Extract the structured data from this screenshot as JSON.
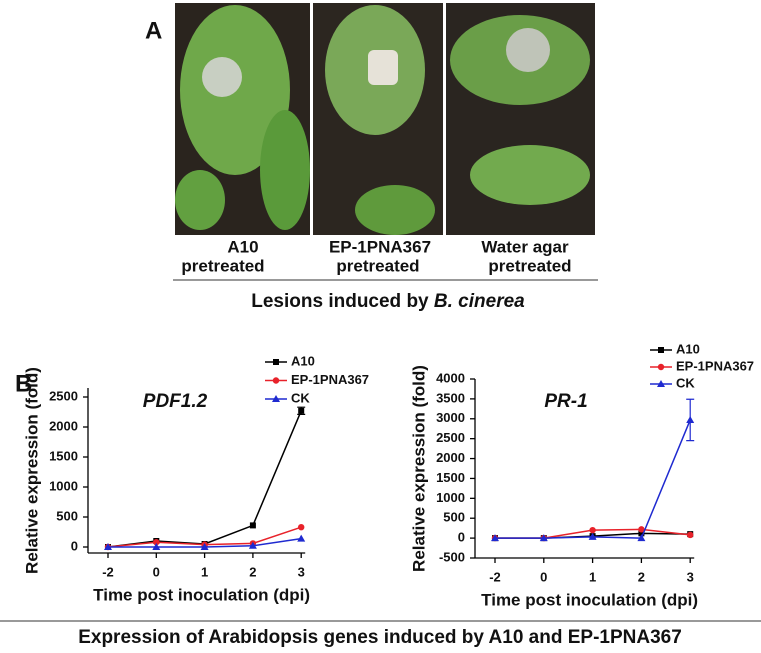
{
  "panel_a": {
    "label": "A",
    "photos": [
      {
        "label": [
          "A10",
          "pretreated"
        ]
      },
      {
        "label": [
          "EP-1PNA367",
          "pretreated"
        ]
      },
      {
        "label": [
          "Water agar",
          "pretreated"
        ]
      }
    ],
    "caption": [
      "Lesions induced by ",
      "B. cinerea"
    ]
  },
  "panel_b_label": "B",
  "chart_data": [
    {
      "type": "line",
      "annotation": "PDF1.2",
      "x_label": "Time post inoculation  (dpi)",
      "y_label": "Relative expression (fold)",
      "categories": [
        "-2",
        "0",
        "1",
        "2",
        "3"
      ],
      "ylim": [
        -100,
        2650
      ],
      "yticks": [
        0,
        500,
        1000,
        1500,
        2000,
        2500
      ],
      "series": [
        {
          "name": "A10",
          "color": "#000000",
          "marker": "square",
          "values": [
            0,
            100,
            50,
            360,
            2270
          ],
          "errors": [
            null,
            null,
            null,
            null,
            60
          ]
        },
        {
          "name": "EP-1PNA367",
          "color": "#e8222a",
          "marker": "circle",
          "values": [
            0,
            80,
            40,
            60,
            330
          ],
          "errors": [
            null,
            null,
            null,
            null,
            null
          ]
        },
        {
          "name": "CK",
          "color": "#1f2ad0",
          "marker": "triangle",
          "values": [
            0,
            0,
            0,
            20,
            140
          ],
          "errors": [
            null,
            null,
            null,
            null,
            null
          ]
        }
      ]
    },
    {
      "type": "line",
      "annotation": "PR-1",
      "x_label": "Time post inoculation  (dpi)",
      "y_label": "Relative expression (fold)",
      "categories": [
        "-2",
        "0",
        "1",
        "2",
        "3"
      ],
      "ylim": [
        -500,
        4000
      ],
      "yticks": [
        -500,
        0,
        500,
        1000,
        1500,
        2000,
        2500,
        3000,
        3500,
        4000
      ],
      "series": [
        {
          "name": "A10",
          "color": "#000000",
          "marker": "square",
          "values": [
            0,
            0,
            50,
            120,
            100
          ],
          "errors": [
            null,
            null,
            null,
            null,
            null
          ]
        },
        {
          "name": "EP-1PNA367",
          "color": "#e8222a",
          "marker": "circle",
          "values": [
            0,
            0,
            200,
            220,
            80
          ],
          "errors": [
            null,
            null,
            null,
            null,
            null
          ]
        },
        {
          "name": "CK",
          "color": "#1f2ad0",
          "marker": "triangle",
          "values": [
            0,
            0,
            30,
            0,
            2970
          ],
          "errors": [
            null,
            null,
            null,
            null,
            520
          ]
        }
      ]
    }
  ],
  "caption": "Expression of Arabidopsis genes induced by A10 and EP-1PNA367"
}
